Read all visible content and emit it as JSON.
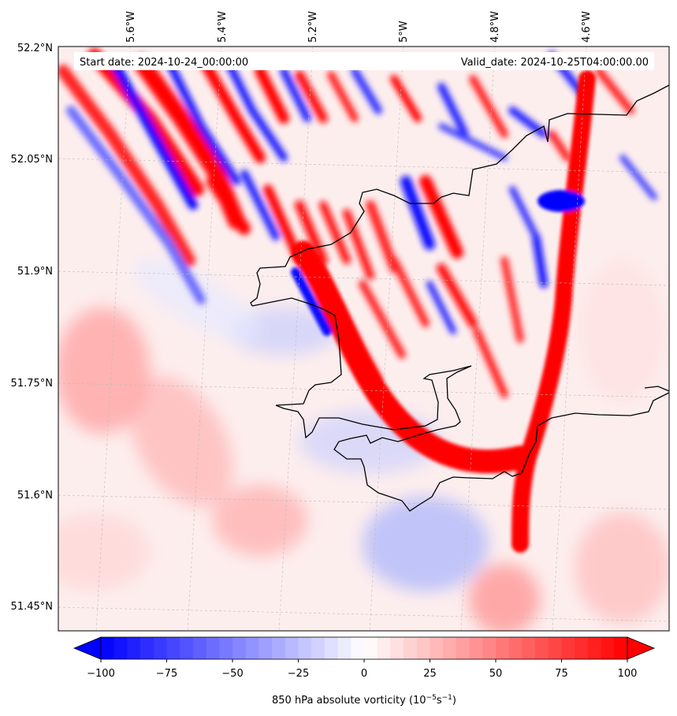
{
  "header": {
    "start_date": "Start date: 2024-10-24_00:00:00",
    "valid_date": "Valid_date: 2024-10-25T04:00:00.00"
  },
  "lon_labels": [
    "5.6°W",
    "5.4°W",
    "5.2°W",
    "5°W",
    "4.8°W",
    "4.6°W"
  ],
  "lat_labels": [
    "52.2°N",
    "52.05°N",
    "51.9°N",
    "51.75°N",
    "51.6°N",
    "51.45°N"
  ],
  "colorbar": {
    "ticks": [
      "−100",
      "−75",
      "−50",
      "−25",
      "0",
      "25",
      "50",
      "75",
      "100"
    ],
    "label_main": "850 hPa absolute vorticity (10",
    "label_exp1": "−5",
    "label_mid": "s",
    "label_exp2": "−1",
    "label_end": ")",
    "min": -100,
    "max": 100,
    "extend": "both",
    "colormap": "bwr"
  },
  "colors": {
    "negative": "#0000ff",
    "neutral": "#ffffff",
    "positive": "#ff0000",
    "coastline": "#000000"
  }
}
